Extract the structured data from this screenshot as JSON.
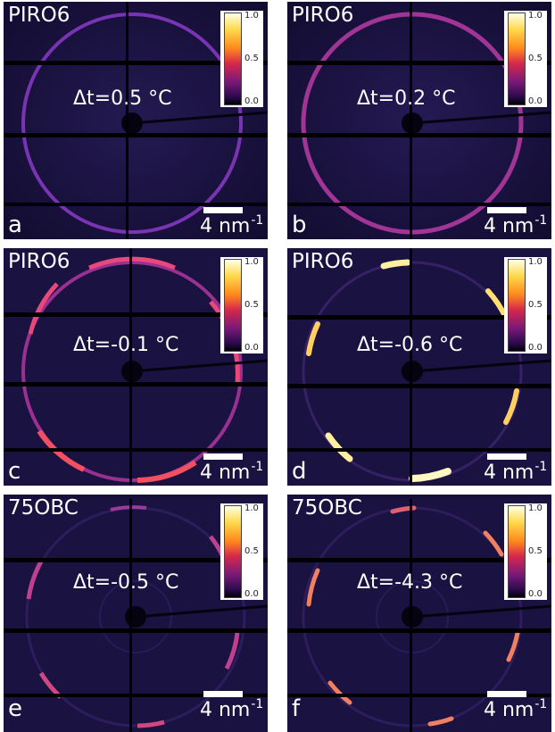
{
  "panels": [
    {
      "id": "a",
      "sample": "PIRO6",
      "dt": "Δt=0.5 °C",
      "letter": "a",
      "scale": "4 nm",
      "scale_exp": "-1",
      "colorbar": {
        "max": "1.0",
        "mid": "0.5",
        "min": "0.0"
      },
      "pattern": "uniform-ring"
    },
    {
      "id": "b",
      "sample": "PIRO6",
      "dt": "Δt=0.2 °C",
      "letter": "b",
      "scale": "4 nm",
      "scale_exp": "-1",
      "colorbar": {
        "max": "1.0",
        "mid": "0.5",
        "min": "0.0"
      },
      "pattern": "uniform-ring-brighter"
    },
    {
      "id": "c",
      "sample": "PIRO6",
      "dt": "Δt=-0.1 °C",
      "letter": "c",
      "scale": "4 nm",
      "scale_exp": "-1",
      "colorbar": {
        "max": "1.0",
        "mid": "0.5",
        "min": "0.0"
      },
      "pattern": "ring-with-arcs"
    },
    {
      "id": "d",
      "sample": "PIRO6",
      "dt": "Δt=-0.6 °C",
      "letter": "d",
      "scale": "4 nm",
      "scale_exp": "-1",
      "colorbar": {
        "max": "1.0",
        "mid": "0.5",
        "min": "0.0"
      },
      "pattern": "six-arcs"
    },
    {
      "id": "e",
      "sample": "75OBC",
      "dt": "Δt=-0.5 °C",
      "letter": "e",
      "scale": "4 nm",
      "scale_exp": "-1",
      "colorbar": {
        "max": "1.0",
        "mid": "0.5",
        "min": "0.0"
      },
      "pattern": "faint-arcs"
    },
    {
      "id": "f",
      "sample": "75OBC",
      "dt": "Δt=-4.3 °C",
      "letter": "f",
      "scale": "4 nm",
      "scale_exp": "-1",
      "colorbar": {
        "max": "1.0",
        "mid": "0.5",
        "min": "0.0"
      },
      "pattern": "arcs"
    }
  ]
}
